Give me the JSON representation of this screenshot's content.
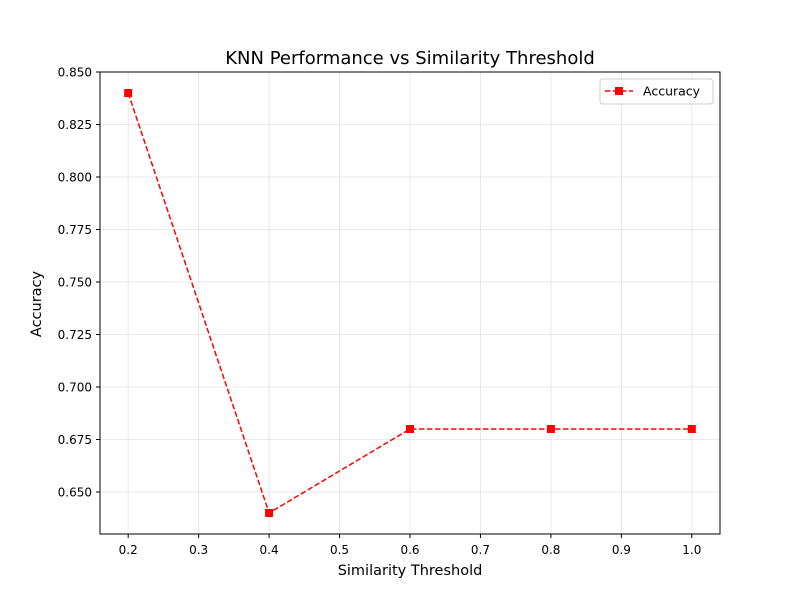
{
  "chart_data": {
    "type": "line",
    "title": "KNN Performance vs Similarity Threshold",
    "xlabel": "Similarity Threshold",
    "ylabel": "Accuracy",
    "x": [
      0.2,
      0.4,
      0.6,
      0.8,
      1.0
    ],
    "series": [
      {
        "name": "Accuracy",
        "values": [
          0.84,
          0.64,
          0.68,
          0.68,
          0.68
        ],
        "color": "#ff0000",
        "linestyle": "dashed",
        "marker": "square"
      }
    ],
    "xlim": [
      0.16,
      1.04
    ],
    "ylim": [
      0.63,
      0.85
    ],
    "xticks": [
      0.2,
      0.3,
      0.4,
      0.5,
      0.6,
      0.7,
      0.8,
      0.9,
      1.0
    ],
    "xtick_labels": [
      "0.2",
      "0.3",
      "0.4",
      "0.5",
      "0.6",
      "0.7",
      "0.8",
      "0.9",
      "1.0"
    ],
    "yticks": [
      0.65,
      0.675,
      0.7,
      0.725,
      0.75,
      0.775,
      0.8,
      0.825,
      0.85
    ],
    "ytick_labels": [
      "0.650",
      "0.675",
      "0.700",
      "0.725",
      "0.750",
      "0.775",
      "0.800",
      "0.825",
      "0.850"
    ],
    "grid": true,
    "legend_position": "top-right"
  }
}
